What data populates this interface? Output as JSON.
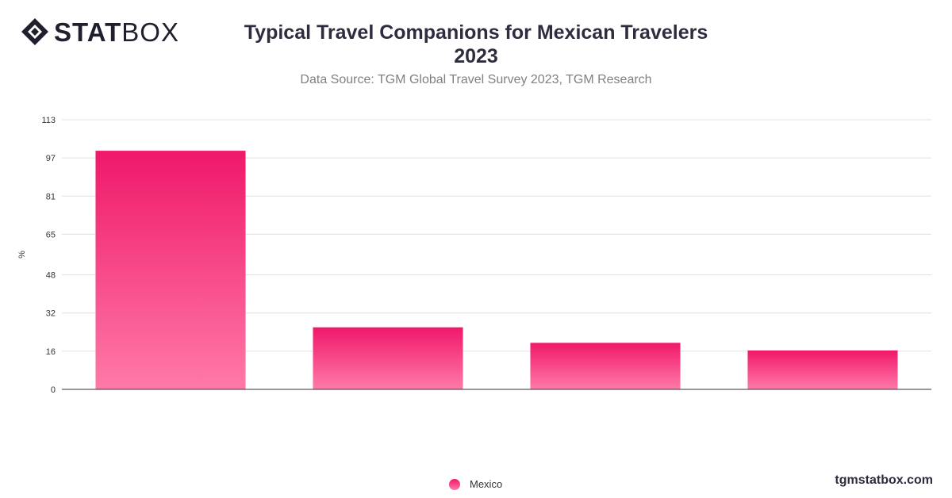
{
  "brand": {
    "logo_bold": "STAT",
    "logo_light": "BOX",
    "site": "tgmstatbox.com"
  },
  "title_line1": "Typical Travel Companions for Mexican Travelers",
  "title_line2": "2023",
  "subtitle": "Data Source: TGM Global Travel Survey 2023, TGM Research",
  "colors": {
    "bar_top": "#f0186a",
    "bar_bottom": "#ff7aa8",
    "text": "#2d2d3f"
  },
  "chart_data": {
    "type": "bar",
    "ylabel": "%",
    "xlabel": "",
    "ylim": [
      0,
      113
    ],
    "yticks": [
      0,
      16,
      32,
      48,
      65,
      81,
      97,
      113
    ],
    "categories": [
      "",
      "",
      "",
      ""
    ],
    "series": [
      {
        "name": "Mexico",
        "values": [
          100,
          26,
          19.5,
          16.3
        ]
      }
    ],
    "grid": true,
    "legend": "bottom-center"
  }
}
